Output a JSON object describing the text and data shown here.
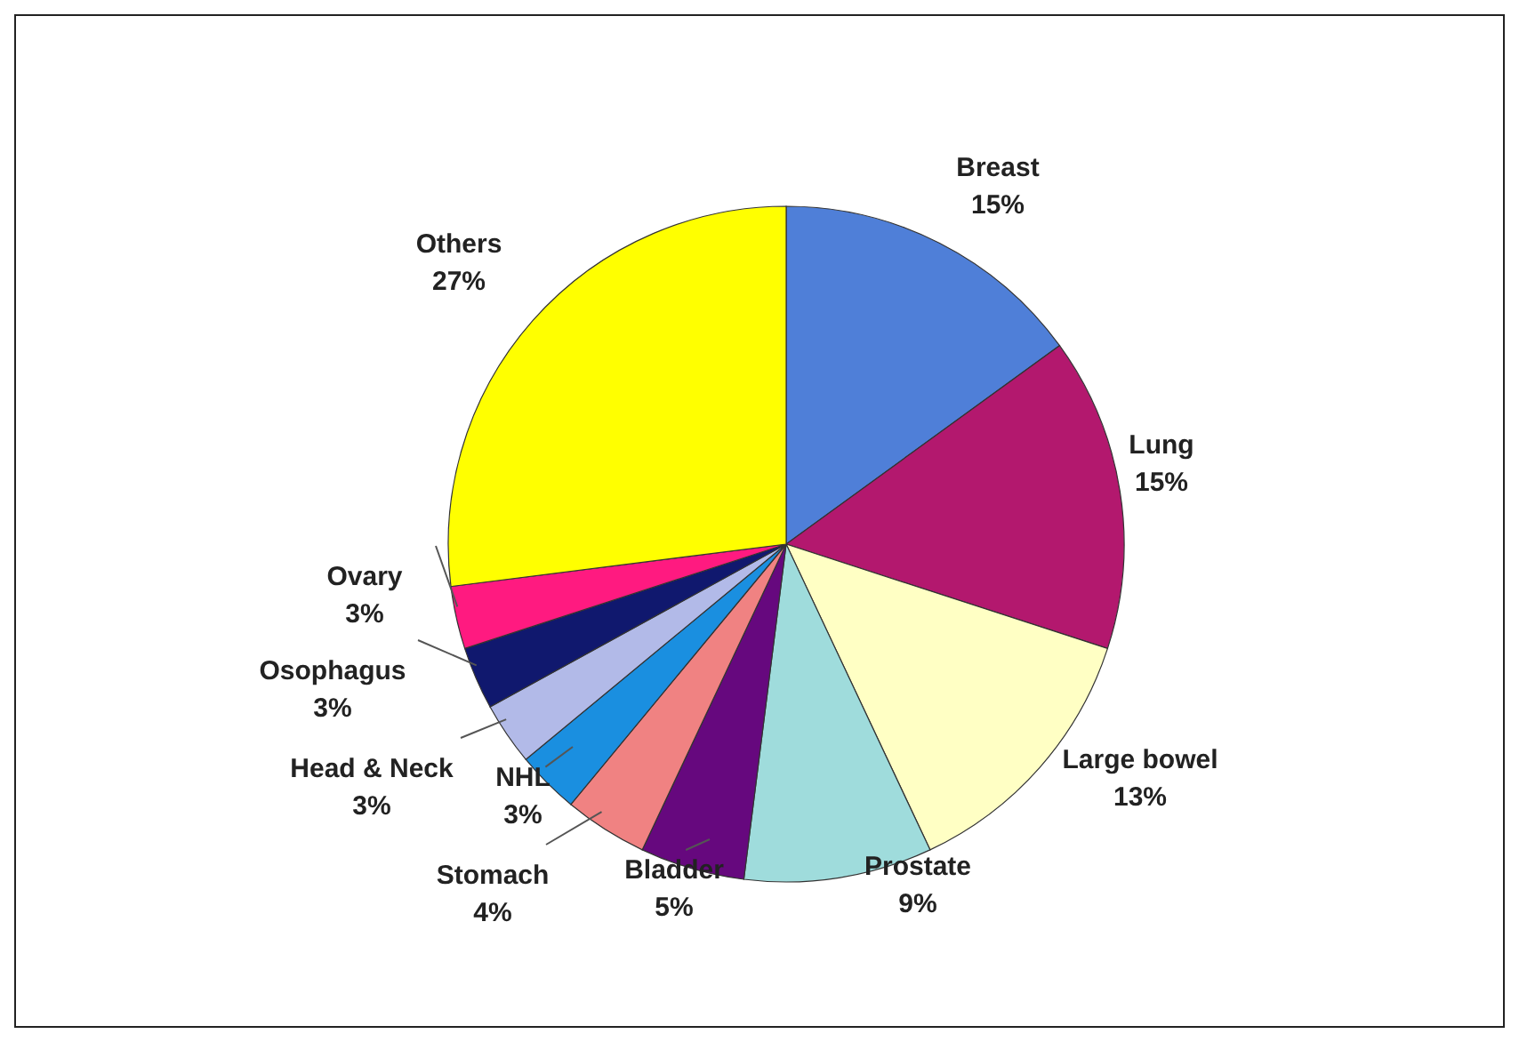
{
  "chart_data": {
    "type": "pie",
    "categories": [
      "Breast",
      "Lung",
      "Large bowel",
      "Prostate",
      "Bladder",
      "Stomach",
      "NHL",
      "Head & Neck",
      "Osophagus",
      "Ovary",
      "Others"
    ],
    "values": [
      15,
      15,
      13,
      9,
      5,
      4,
      3,
      3,
      3,
      3,
      27
    ],
    "colors": [
      "#4f7fd8",
      "#b3186e",
      "#ffffc4",
      "#9fdcdc",
      "#66087e",
      "#f08282",
      "#1a8fe0",
      "#b2bae8",
      "#10186e",
      "#ff1a80",
      "#ffff00"
    ],
    "legend": false,
    "value_labels": [
      "15%",
      "15%",
      "13%",
      "9%",
      "5%",
      "4%",
      "3%",
      "3%",
      "3%",
      "3%",
      "27%"
    ]
  }
}
